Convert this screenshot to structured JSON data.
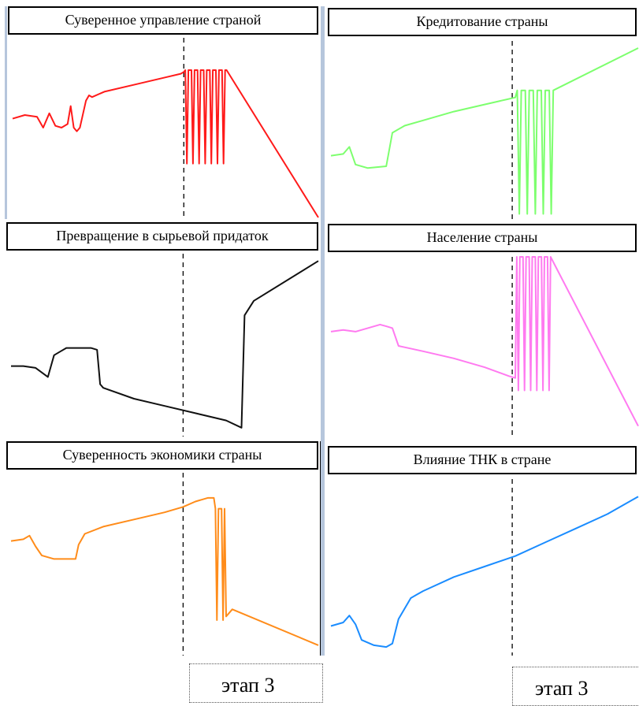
{
  "charts": [
    {
      "id": "p1",
      "title": "Суверенное управление страной",
      "color": "#ff1a1a"
    },
    {
      "id": "p2",
      "title": "Кредитование страны",
      "color": "#7dff6e"
    },
    {
      "id": "p3",
      "title": "Превращение в сырьевой придаток",
      "color": "#111111"
    },
    {
      "id": "p4",
      "title": "Население страны",
      "color": "#ff7af0"
    },
    {
      "id": "p5",
      "title": "Суверенность экономики страны",
      "color": "#ff8c1a"
    },
    {
      "id": "p6",
      "title": "Влияние ТНК в стране",
      "color": "#1a8cff"
    }
  ],
  "stage_label_left": "этап 3",
  "stage_label_right": "этап 3",
  "chart_data": [
    {
      "type": "line",
      "title": "Суверенное управление страной",
      "color": "#ff1a1a",
      "ylim": [
        0,
        100
      ],
      "xlim": [
        0,
        100
      ],
      "stage_x": 56,
      "series": [
        {
          "x": [
            0,
            4,
            8,
            10,
            12,
            14,
            16,
            18,
            19,
            20,
            21,
            22,
            24,
            25,
            26,
            30,
            40,
            50,
            55,
            56,
            100
          ],
          "y": [
            55,
            57,
            56,
            50,
            58,
            51,
            50,
            52,
            62,
            50,
            48,
            50,
            65,
            68,
            67,
            70,
            74,
            78,
            80,
            81,
            0
          ],
          "oscillation": {
            "x_from": 56,
            "x_to": 70,
            "count": 7,
            "low": 30,
            "high": 82
          },
          "drop_at": 70
        }
      ]
    },
    {
      "type": "line",
      "title": "Кредитование страны",
      "color": "#7dff6e",
      "ylim": [
        0,
        100
      ],
      "xlim": [
        0,
        100
      ],
      "stage_x": 59,
      "series": [
        {
          "x": [
            0,
            4,
            6,
            8,
            12,
            18,
            20,
            24,
            30,
            40,
            50,
            60,
            61,
            100
          ],
          "y": [
            35,
            36,
            40,
            30,
            28,
            29,
            48,
            52,
            55,
            60,
            64,
            68,
            68,
            96
          ],
          "oscillation": {
            "x_from": 60,
            "x_to": 73,
            "count": 5,
            "low": 2,
            "high": 72
          }
        }
      ]
    },
    {
      "type": "line",
      "title": "Превращение в сырьевой придаток",
      "color": "#111111",
      "ylim": [
        0,
        100
      ],
      "xlim": [
        0,
        100
      ],
      "stage_x": 56,
      "series": [
        {
          "x": [
            0,
            4,
            8,
            12,
            14,
            16,
            18,
            22,
            26,
            28,
            29,
            30,
            40,
            50,
            60,
            70,
            75,
            76,
            79,
            100
          ],
          "y": [
            38,
            38,
            37,
            32,
            44,
            46,
            48,
            48,
            48,
            47,
            28,
            26,
            20,
            16,
            12,
            8,
            4,
            66,
            74,
            96
          ]
        }
      ]
    },
    {
      "type": "line",
      "title": "Население страны",
      "color": "#ff7af0",
      "ylim": [
        0,
        100
      ],
      "xlim": [
        0,
        100
      ],
      "stage_x": 59,
      "series": [
        {
          "x": [
            0,
            4,
            8,
            12,
            16,
            18,
            20,
            22,
            30,
            40,
            50,
            58,
            60,
            100
          ],
          "y": [
            58,
            59,
            58,
            60,
            62,
            61,
            60,
            50,
            47,
            43,
            38,
            33,
            32,
            5
          ],
          "oscillation": {
            "x_from": 60,
            "x_to": 72,
            "count": 6,
            "low": 25,
            "high": 100
          }
        }
      ]
    },
    {
      "type": "line",
      "title": "Суверенность экономики страны",
      "color": "#ff8c1a",
      "ylim": [
        0,
        100
      ],
      "xlim": [
        0,
        100
      ],
      "stage_x": 56,
      "series": [
        {
          "x": [
            0,
            4,
            6,
            8,
            10,
            14,
            18,
            21,
            22,
            24,
            30,
            40,
            50,
            56,
            60,
            64,
            66,
            66.5,
            70,
            72,
            100
          ],
          "y": [
            62,
            63,
            65,
            59,
            54,
            52,
            52,
            52,
            60,
            66,
            70,
            74,
            78,
            81,
            84,
            86,
            86,
            20,
            20,
            24,
            4
          ],
          "oscillation": {
            "x_from": 66,
            "x_to": 70,
            "count": 2,
            "low": 18,
            "high": 80
          }
        }
      ]
    },
    {
      "type": "line",
      "title": "Влияние ТНК в стране",
      "color": "#1a8cff",
      "ylim": [
        0,
        100
      ],
      "xlim": [
        0,
        100
      ],
      "stage_x": 59,
      "series": [
        {
          "x": [
            0,
            4,
            6,
            8,
            10,
            14,
            18,
            20,
            22,
            26,
            28,
            30,
            40,
            50,
            60,
            70,
            80,
            90,
            100
          ],
          "y": [
            16,
            18,
            22,
            17,
            8,
            5,
            4,
            6,
            20,
            32,
            34,
            36,
            44,
            50,
            56,
            64,
            72,
            80,
            90
          ]
        }
      ]
    }
  ]
}
